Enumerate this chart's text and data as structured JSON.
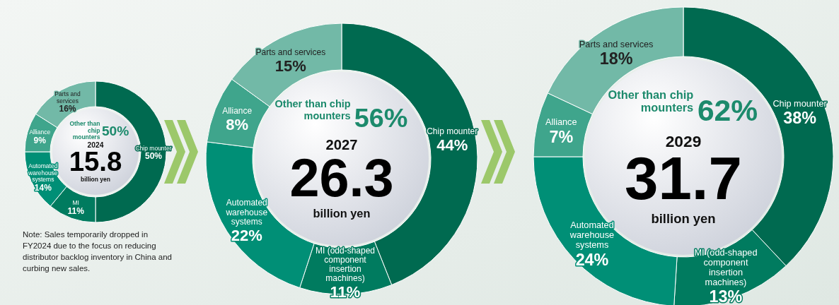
{
  "chart_data": [
    {
      "type": "donut",
      "title": "2024",
      "categories": [
        "Chip mounter",
        "MI",
        "Automated warehouse systems",
        "Alliance",
        "Parts and services"
      ],
      "values": [
        50,
        11,
        14,
        9,
        16
      ],
      "colors": [
        "#006a50",
        "#007b5f",
        "#008f76",
        "#3fa58c",
        "#72b9a7"
      ],
      "value_labels": [
        "50%",
        "11%",
        "14%",
        "9%",
        "16%"
      ],
      "annotations": [
        "Other than chip mounters",
        "50%",
        "15.8",
        "billion yen",
        "Note: Sales temporarily dropped in FY2024 due to the focus on reducing distributor backlog inventory in China and curbing new sales."
      ]
    },
    {
      "type": "donut",
      "title": "2027",
      "categories": [
        "Chip mounter",
        "MI (odd-shaped component insertion machines)",
        "Automated warehouse systems",
        "Alliance",
        "Parts and services"
      ],
      "values": [
        44,
        11,
        22,
        8,
        15
      ],
      "colors": [
        "#006a50",
        "#007b5f",
        "#008f76",
        "#3fa58c",
        "#72b9a7"
      ],
      "value_labels": [
        "44%",
        "11%",
        "22%",
        "8%",
        "15%"
      ],
      "annotations": [
        "Other than chip mounters",
        "56%",
        "26.3",
        "billion yen"
      ]
    },
    {
      "type": "donut",
      "title": "2029",
      "categories": [
        "Chip mounter",
        "MI (odd-shaped component insertion machines)",
        "Automated warehouse systems",
        "Alliance",
        "Parts and services"
      ],
      "values": [
        38,
        13,
        24,
        7,
        18
      ],
      "colors": [
        "#006a50",
        "#007b5f",
        "#008f76",
        "#3fa58c",
        "#72b9a7"
      ],
      "value_labels": [
        "38%",
        "13%",
        "24%",
        "7%",
        "18%"
      ],
      "annotations": [
        "Other than chip mounters",
        "62%",
        "31.7",
        "billion yen"
      ]
    }
  ]
}
